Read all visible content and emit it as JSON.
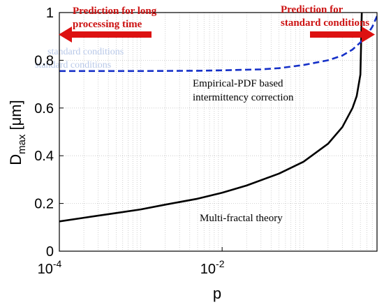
{
  "chart_data": {
    "type": "line",
    "xscale": "log",
    "xlim": [
      0.0001,
      0.8
    ],
    "ylim": [
      0,
      1
    ],
    "grid": true,
    "xlabel": "p",
    "ylabel_main": "D",
    "ylabel_sub": "max",
    "ylabel_unit": "[μm]",
    "x_ticks": [
      {
        "value": 0.0001,
        "base": "10",
        "exp": "-4"
      },
      {
        "value": 0.01,
        "base": "10",
        "exp": "-2"
      }
    ],
    "y_ticks": [
      {
        "value": 0,
        "label": "0"
      },
      {
        "value": 0.2,
        "label": "0.2"
      },
      {
        "value": 0.4,
        "label": "0.4"
      },
      {
        "value": 0.6,
        "label": "0.6"
      },
      {
        "value": 0.8,
        "label": "0.8"
      },
      {
        "value": 1,
        "label": "1"
      }
    ],
    "series": [
      {
        "style": "solid",
        "color": "#000000",
        "x": [
          0.0001,
          0.0002,
          0.0005,
          0.001,
          0.002,
          0.005,
          0.01,
          0.02,
          0.05,
          0.1,
          0.2,
          0.3,
          0.4,
          0.45,
          0.5,
          0.52
        ],
        "y": [
          0.125,
          0.14,
          0.16,
          0.175,
          0.195,
          0.22,
          0.245,
          0.275,
          0.325,
          0.375,
          0.45,
          0.52,
          0.6,
          0.65,
          0.74,
          1.0
        ]
      },
      {
        "style": "dashed",
        "color": "#1530c8",
        "x": [
          0.0001,
          0.0005,
          0.001,
          0.005,
          0.01,
          0.03,
          0.05,
          0.1,
          0.2,
          0.3,
          0.4,
          0.5,
          0.6,
          0.7,
          0.8
        ],
        "y": [
          0.755,
          0.755,
          0.755,
          0.756,
          0.758,
          0.762,
          0.767,
          0.78,
          0.8,
          0.82,
          0.845,
          0.875,
          0.905,
          0.94,
          0.985
        ]
      }
    ],
    "annotations": {
      "left_red_line1": "Prediction for long",
      "left_red_line2": "processing time",
      "right_red_line1": "Prediction for",
      "right_red_line2": "standard conditions",
      "dashed_label_line1": "Empirical-PDF based",
      "dashed_label_line2": "intermittency correction",
      "solid_label": "Multi-fractal theory"
    }
  }
}
